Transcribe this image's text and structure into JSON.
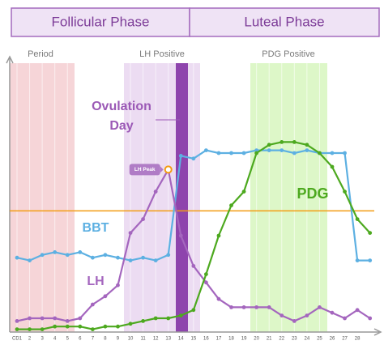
{
  "header": {
    "phases": [
      "Follicular Phase",
      "Luteal Phase"
    ]
  },
  "chart_data": {
    "type": "line",
    "categories": [
      "CD1",
      "2",
      "3",
      "4",
      "5",
      "6",
      "7",
      "8",
      "9",
      "10",
      "11",
      "12",
      "13",
      "14",
      "15",
      "16",
      "17",
      "18",
      "19",
      "20",
      "21",
      "22",
      "23",
      "24",
      "25",
      "26",
      "27",
      "28",
      null
    ],
    "ylim": [
      0,
      100
    ],
    "regions": [
      {
        "label": "Period",
        "color": "#f6d5d8"
      },
      {
        "label": "LH Positive",
        "color": "#ecdcf2"
      },
      {
        "label": "PDG Positive",
        "color": "#ddf7c8"
      }
    ],
    "ovulation": {
      "label": [
        "Ovulation",
        "Day"
      ],
      "color": "#8e44ad"
    },
    "threshold": {
      "value": 44,
      "color": "#f39c12"
    },
    "peak": {
      "label": "LH Peak",
      "series": 1,
      "index": 12,
      "color": "#f39c12"
    },
    "series": [
      {
        "name": "BBT",
        "color": "#5db0e2",
        "values": [
          27,
          26,
          28,
          29,
          28,
          29,
          27,
          28,
          27,
          26,
          27,
          26,
          28,
          64,
          63,
          66,
          65,
          65,
          65,
          66,
          66,
          66,
          65,
          66,
          65,
          65,
          65,
          26,
          26
        ]
      },
      {
        "name": "LH",
        "color": "#a466be",
        "values": [
          4,
          5,
          5,
          5,
          4,
          5,
          10,
          13,
          17,
          36,
          41,
          51,
          59,
          35,
          24,
          18,
          12,
          9,
          9,
          9,
          9,
          6,
          4,
          6,
          9,
          7,
          5,
          8,
          5
        ]
      },
      {
        "name": "PDG",
        "color": "#4da91f",
        "values": [
          1,
          1,
          1,
          2,
          2,
          2,
          1,
          2,
          2,
          3,
          4,
          5,
          5,
          6,
          8,
          21,
          35,
          46,
          51,
          65,
          68,
          69,
          69,
          68,
          65,
          60,
          51,
          41,
          36
        ]
      }
    ]
  }
}
